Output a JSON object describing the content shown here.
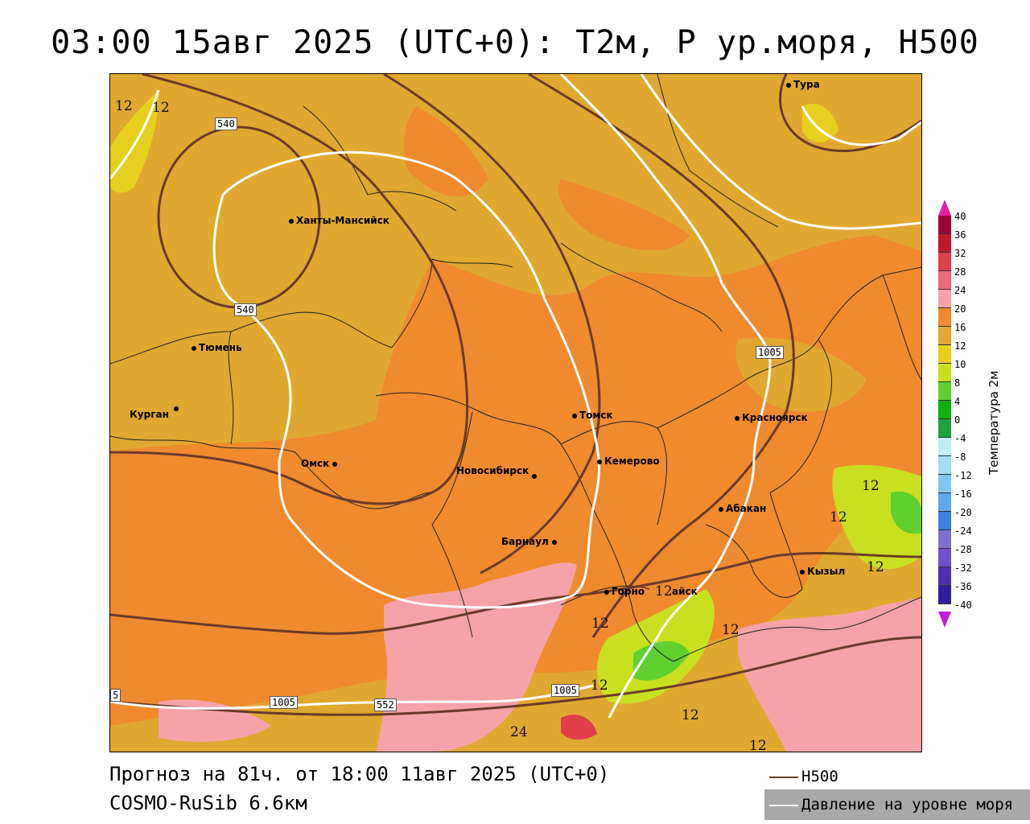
{
  "title": "03:00 15авг 2025 (UTC+0): T2м, P ур.моря, H500",
  "footer": {
    "forecast": "Прогноз на 81ч. от 18:00 11авг 2025 (UTC+0)",
    "model": "COSMO-RuSib 6.6км"
  },
  "legend": {
    "h500": "H500",
    "pressure": "Давление на уровне моря"
  },
  "colorbar": {
    "title": "Температура 2м",
    "labels": [
      "40",
      "36",
      "32",
      "28",
      "24",
      "20",
      "16",
      "12",
      "10",
      "8",
      "4",
      "0",
      "-4",
      "-8",
      "-12",
      "-16",
      "-20",
      "-24",
      "-28",
      "-32",
      "-36",
      "-40"
    ],
    "colors": [
      "#a0003a",
      "#c01a2a",
      "#e0404a",
      "#ef6a78",
      "#f5a3a8",
      "#ef8a2f",
      "#e0a830",
      "#e8d020",
      "#c8e020",
      "#60d030",
      "#10b010",
      "#20a040",
      "#c0f0f0",
      "#a0e0f0",
      "#80c8f0",
      "#60a8e8",
      "#4080e0",
      "#8070d0",
      "#7050c8",
      "#5030b0",
      "#3020a0",
      "#1a1090"
    ]
  },
  "cities": [
    {
      "name": "Тура"
    },
    {
      "name": "Ханты-Мансийск"
    },
    {
      "name": "Тюмень"
    },
    {
      "name": "Курган"
    },
    {
      "name": "Омск"
    },
    {
      "name": "Томск"
    },
    {
      "name": "Новосибирск"
    },
    {
      "name": "Кемерово"
    },
    {
      "name": "Красноярск"
    },
    {
      "name": "Абакан"
    },
    {
      "name": "Барнаул"
    },
    {
      "name": "Горно",
      "suffix": "айск"
    },
    {
      "name": "Кызыл"
    }
  ],
  "contour_labels": {
    "t12": "12",
    "t24": "24",
    "h540": "540",
    "h552": "552",
    "p1005": "1005",
    "p5": "5"
  }
}
